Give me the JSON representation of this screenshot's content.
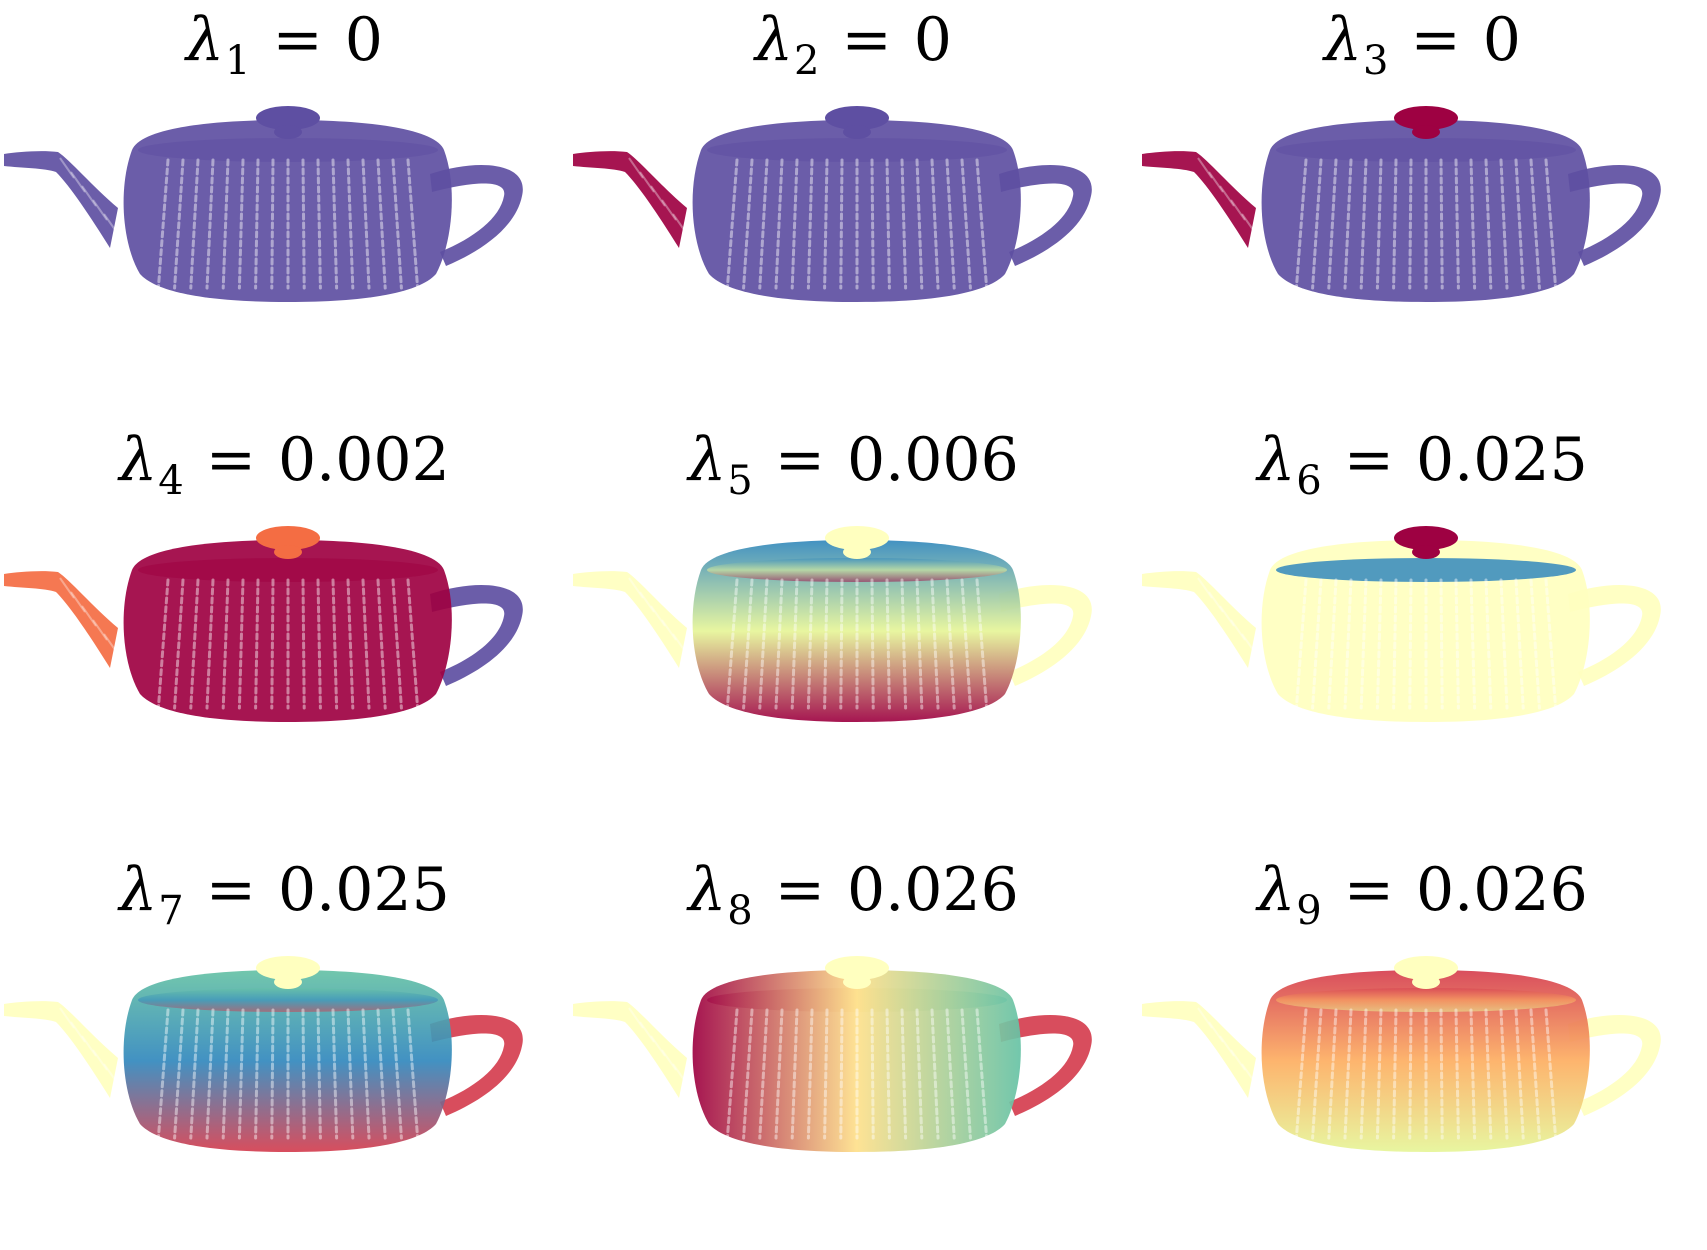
{
  "figure": {
    "panels": [
      {
        "symbol": "λ",
        "index": "1",
        "eq": "=",
        "value": "0",
        "mode": "uniform",
        "colors": {
          "body": "#5E4FA2",
          "lid": "#5E4FA2",
          "spout": "#5E4FA2",
          "handle": "#5E4FA2"
        }
      },
      {
        "symbol": "λ",
        "index": "2",
        "eq": "=",
        "value": "0",
        "mode": "uniform",
        "colors": {
          "body": "#5E4FA2",
          "lid": "#5E4FA2",
          "spout": "#9E0142",
          "handle": "#5E4FA2"
        }
      },
      {
        "symbol": "λ",
        "index": "3",
        "eq": "=",
        "value": "0",
        "mode": "uniform",
        "colors": {
          "body": "#5E4FA2",
          "lid": "#9E0142",
          "spout": "#9E0142",
          "handle": "#5E4FA2"
        }
      },
      {
        "symbol": "λ",
        "index": "4",
        "eq": "=",
        "value": "0.002",
        "mode": "uniform",
        "colors": {
          "body": "#9E0142",
          "lid": "#F46D43",
          "spout": "#F46D43",
          "handle": "#5E4FA2"
        }
      },
      {
        "symbol": "λ",
        "index": "5",
        "eq": "=",
        "value": "0.006",
        "mode": "vertical",
        "colors": {
          "body_top": "#3288BD",
          "body_mid": "#E6F598",
          "body_bottom": "#9E0142",
          "lid": "#FFFFBF",
          "spout": "#FFFFBF",
          "handle": "#FFFFBF"
        }
      },
      {
        "symbol": "λ",
        "index": "6",
        "eq": "=",
        "value": "0.025",
        "mode": "uniform",
        "colors": {
          "body": "#FFFFBF",
          "lid": "#9E0142",
          "spout": "#FFFFBF",
          "handle": "#FFFFBF",
          "rim": "#3288BD"
        }
      },
      {
        "symbol": "λ",
        "index": "7",
        "eq": "=",
        "value": "0.025",
        "mode": "vertical",
        "colors": {
          "body_top": "#66C2A5",
          "body_mid": "#3288BD",
          "body_bottom": "#D53E4F",
          "lid": "#FFFFBF",
          "spout": "#FFFFBF",
          "handle": "#D53E4F"
        }
      },
      {
        "symbol": "λ",
        "index": "8",
        "eq": "=",
        "value": "0.026",
        "mode": "horizontal",
        "colors": {
          "body_left": "#9E0142",
          "body_mid": "#FEE08B",
          "body_right": "#66C2A5",
          "lid": "#FFFFBF",
          "spout": "#FFFFBF",
          "handle": "#D53E4F"
        }
      },
      {
        "symbol": "λ",
        "index": "9",
        "eq": "=",
        "value": "0.026",
        "mode": "vertical",
        "colors": {
          "body_top": "#D53E4F",
          "body_mid": "#FDAE61",
          "body_bottom": "#E6F598",
          "lid": "#FFFFBF",
          "spout": "#FFFFBF",
          "handle": "#FFFFBF"
        }
      }
    ]
  }
}
